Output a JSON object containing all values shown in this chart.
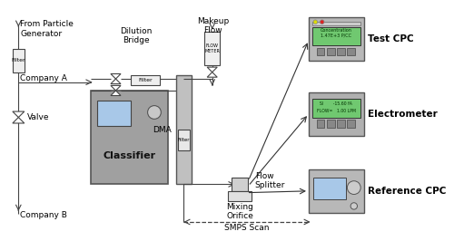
{
  "bg_color": "#ffffff",
  "line_color": "#444444",
  "device_bg": "#a8a8a8",
  "device_bg2": "#b8b8b8",
  "screen_blue": "#a8c8e8",
  "screen_green": "#70c870",
  "labels": {
    "from_particle_generator": "From Particle\nGenerator",
    "company_a": "Company A",
    "company_b": "Company B",
    "dilution_bridge": "Dilution\nBridge",
    "makeup_flow": "Makeup\nFlow",
    "valve": "Valve",
    "filter": "Filter",
    "classifier": "Classifier",
    "dma": "DMA",
    "flow_splitter": "Flow\nSplitter",
    "mixing_orifice": "Mixing\nOrifice",
    "smps_scan": "SMPS Scan",
    "test_cpc": "Test CPC",
    "electrometer": "Electrometer",
    "reference_cpc": "Reference CPC"
  }
}
